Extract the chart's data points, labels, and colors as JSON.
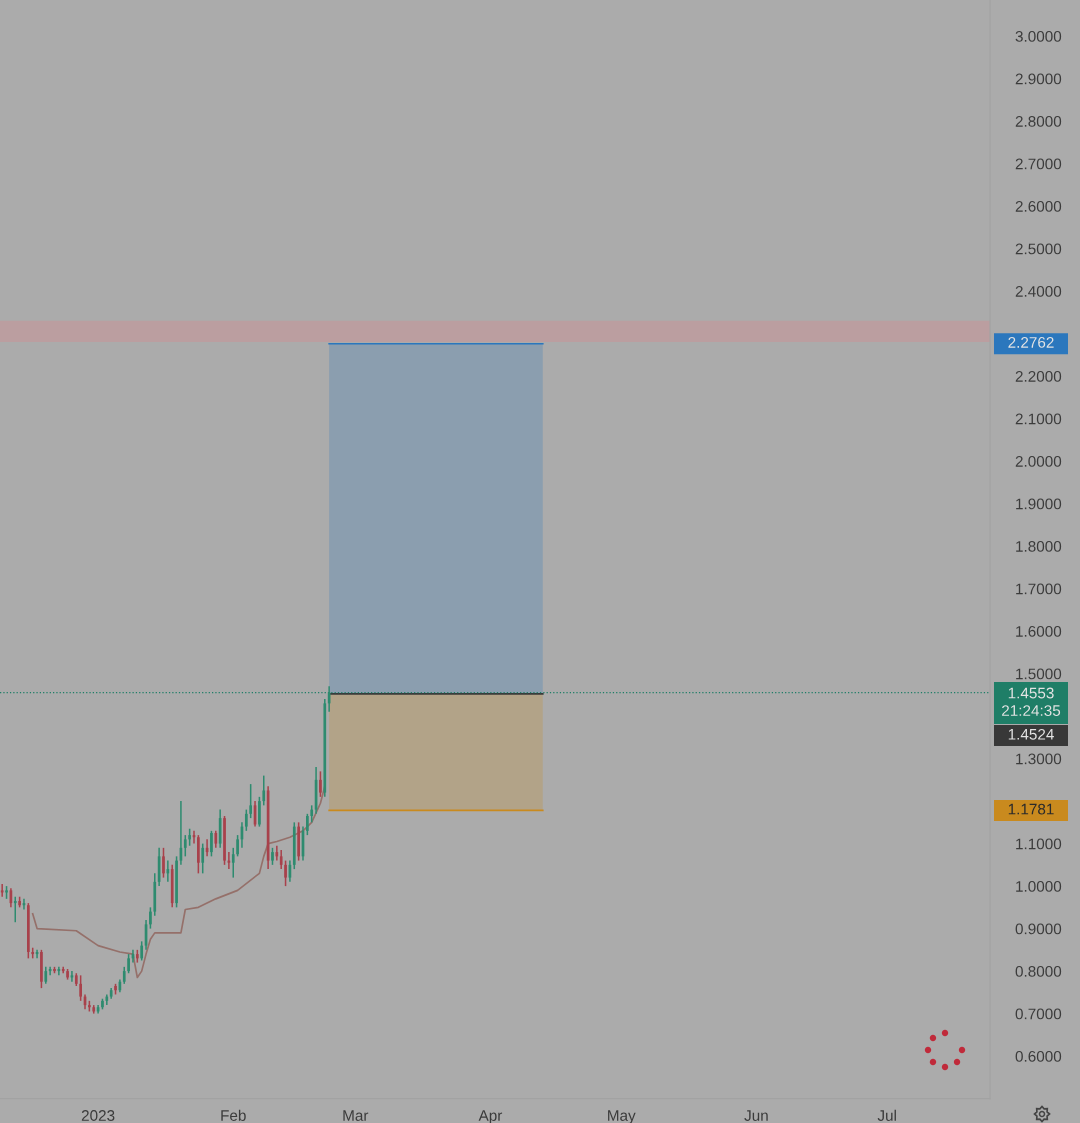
{
  "chart_data": {
    "type": "candlestick",
    "x": [
      "2022-12-10",
      "2022-12-11",
      "2022-12-12",
      "2022-12-13",
      "2022-12-14",
      "2022-12-15",
      "2022-12-16",
      "2022-12-17",
      "2022-12-18",
      "2022-12-19",
      "2022-12-20",
      "2022-12-21",
      "2022-12-22",
      "2022-12-23",
      "2022-12-24",
      "2022-12-25",
      "2022-12-26",
      "2022-12-27",
      "2022-12-28",
      "2022-12-29",
      "2022-12-30",
      "2022-12-31",
      "2023-01-01",
      "2023-01-02",
      "2023-01-03",
      "2023-01-04",
      "2023-01-05",
      "2023-01-06",
      "2023-01-07",
      "2023-01-08",
      "2023-01-09",
      "2023-01-10",
      "2023-01-11",
      "2023-01-12",
      "2023-01-13",
      "2023-01-14",
      "2023-01-15",
      "2023-01-16",
      "2023-01-17",
      "2023-01-18",
      "2023-01-19",
      "2023-01-20",
      "2023-01-21",
      "2023-01-22",
      "2023-01-23",
      "2023-01-24",
      "2023-01-25",
      "2023-01-26",
      "2023-01-27",
      "2023-01-28",
      "2023-01-29",
      "2023-01-30",
      "2023-01-31",
      "2023-02-01",
      "2023-02-02",
      "2023-02-03",
      "2023-02-04",
      "2023-02-05",
      "2023-02-06",
      "2023-02-07",
      "2023-02-08",
      "2023-02-09",
      "2023-02-10",
      "2023-02-11",
      "2023-02-12",
      "2023-02-13",
      "2023-02-14",
      "2023-02-15",
      "2023-02-16",
      "2023-02-17",
      "2023-02-18",
      "2023-02-19",
      "2023-02-20",
      "2023-02-21",
      "2023-02-22",
      "2023-02-23"
    ],
    "ohlc": [
      [
        0.99,
        1.005,
        0.975,
        0.985
      ],
      [
        0.985,
        1.0,
        0.97,
        0.99
      ],
      [
        0.99,
        0.995,
        0.95,
        0.96
      ],
      [
        0.96,
        0.975,
        0.915,
        0.965
      ],
      [
        0.965,
        0.975,
        0.95,
        0.955
      ],
      [
        0.955,
        0.97,
        0.945,
        0.96
      ],
      [
        0.955,
        0.96,
        0.83,
        0.845
      ],
      [
        0.845,
        0.855,
        0.83,
        0.84
      ],
      [
        0.84,
        0.85,
        0.83,
        0.845
      ],
      [
        0.845,
        0.85,
        0.76,
        0.775
      ],
      [
        0.775,
        0.81,
        0.77,
        0.8
      ],
      [
        0.8,
        0.81,
        0.79,
        0.805
      ],
      [
        0.805,
        0.81,
        0.795,
        0.8
      ],
      [
        0.8,
        0.81,
        0.79,
        0.805
      ],
      [
        0.805,
        0.81,
        0.795,
        0.8
      ],
      [
        0.8,
        0.805,
        0.78,
        0.785
      ],
      [
        0.785,
        0.8,
        0.775,
        0.79
      ],
      [
        0.79,
        0.795,
        0.765,
        0.77
      ],
      [
        0.77,
        0.79,
        0.73,
        0.74
      ],
      [
        0.74,
        0.745,
        0.71,
        0.72
      ],
      [
        0.72,
        0.73,
        0.705,
        0.715
      ],
      [
        0.715,
        0.72,
        0.7,
        0.705
      ],
      [
        0.705,
        0.72,
        0.7,
        0.715
      ],
      [
        0.715,
        0.735,
        0.71,
        0.73
      ],
      [
        0.73,
        0.745,
        0.72,
        0.74
      ],
      [
        0.74,
        0.76,
        0.735,
        0.755
      ],
      [
        0.765,
        0.77,
        0.745,
        0.755
      ],
      [
        0.755,
        0.78,
        0.75,
        0.775
      ],
      [
        0.775,
        0.81,
        0.77,
        0.8
      ],
      [
        0.8,
        0.84,
        0.795,
        0.83
      ],
      [
        0.83,
        0.85,
        0.82,
        0.84
      ],
      [
        0.84,
        0.85,
        0.82,
        0.83
      ],
      [
        0.83,
        0.87,
        0.825,
        0.86
      ],
      [
        0.86,
        0.92,
        0.85,
        0.91
      ],
      [
        0.91,
        0.95,
        0.9,
        0.94
      ],
      [
        0.94,
        1.03,
        0.93,
        1.01
      ],
      [
        1.01,
        1.09,
        1.0,
        1.07
      ],
      [
        1.07,
        1.09,
        1.02,
        1.03
      ],
      [
        1.03,
        1.06,
        1.01,
        1.04
      ],
      [
        1.04,
        1.05,
        0.95,
        0.96
      ],
      [
        0.96,
        1.07,
        0.95,
        1.06
      ],
      [
        1.06,
        1.2,
        1.05,
        1.09
      ],
      [
        1.09,
        1.12,
        1.07,
        1.11
      ],
      [
        1.11,
        1.135,
        1.095,
        1.12
      ],
      [
        1.12,
        1.13,
        1.1,
        1.115
      ],
      [
        1.115,
        1.12,
        1.03,
        1.055
      ],
      [
        1.055,
        1.1,
        1.03,
        1.09
      ],
      [
        1.09,
        1.11,
        1.07,
        1.08
      ],
      [
        1.08,
        1.13,
        1.07,
        1.125
      ],
      [
        1.125,
        1.13,
        1.09,
        1.1
      ],
      [
        1.1,
        1.18,
        1.09,
        1.16
      ],
      [
        1.16,
        1.165,
        1.05,
        1.06
      ],
      [
        1.06,
        1.08,
        1.04,
        1.055
      ],
      [
        1.055,
        1.09,
        1.02,
        1.075
      ],
      [
        1.075,
        1.12,
        1.07,
        1.11
      ],
      [
        1.11,
        1.15,
        1.09,
        1.14
      ],
      [
        1.14,
        1.18,
        1.13,
        1.17
      ],
      [
        1.17,
        1.24,
        1.16,
        1.19
      ],
      [
        1.19,
        1.2,
        1.14,
        1.145
      ],
      [
        1.145,
        1.21,
        1.14,
        1.2
      ],
      [
        1.2,
        1.26,
        1.19,
        1.225
      ],
      [
        1.225,
        1.235,
        1.04,
        1.06
      ],
      [
        1.06,
        1.09,
        1.05,
        1.08
      ],
      [
        1.08,
        1.095,
        1.06,
        1.07
      ],
      [
        1.07,
        1.085,
        1.04,
        1.05
      ],
      [
        1.05,
        1.06,
        1.0,
        1.02
      ],
      [
        1.02,
        1.06,
        1.01,
        1.05
      ],
      [
        1.05,
        1.15,
        1.04,
        1.14
      ],
      [
        1.14,
        1.15,
        1.06,
        1.07
      ],
      [
        1.07,
        1.14,
        1.06,
        1.13
      ],
      [
        1.13,
        1.17,
        1.12,
        1.165
      ],
      [
        1.165,
        1.19,
        1.15,
        1.18
      ],
      [
        1.18,
        1.28,
        1.17,
        1.25
      ],
      [
        1.25,
        1.27,
        1.21,
        1.22
      ],
      [
        1.22,
        1.44,
        1.21,
        1.43
      ],
      [
        1.43,
        1.47,
        1.41,
        1.4553
      ]
    ],
    "colors": [
      "#a8414b",
      "#2e8b6f",
      "#a8414b",
      "#2e8b6f",
      "#a8414b",
      "#2e8b6f",
      "#a8414b",
      "#a8414b",
      "#2e8b6f",
      "#a8414b",
      "#2e8b6f",
      "#2e8b6f",
      "#a8414b",
      "#2e8b6f",
      "#a8414b",
      "#a8414b",
      "#2e8b6f",
      "#a8414b",
      "#a8414b",
      "#a8414b",
      "#a8414b",
      "#a8414b",
      "#2e8b6f",
      "#2e8b6f",
      "#2e8b6f",
      "#2e8b6f",
      "#a8414b",
      "#2e8b6f",
      "#2e8b6f",
      "#2e8b6f",
      "#2e8b6f",
      "#a8414b",
      "#2e8b6f",
      "#2e8b6f",
      "#2e8b6f",
      "#2e8b6f",
      "#2e8b6f",
      "#a8414b",
      "#2e8b6f",
      "#a8414b",
      "#2e8b6f",
      "#2e8b6f",
      "#2e8b6f",
      "#2e8b6f",
      "#a8414b",
      "#a8414b",
      "#2e8b6f",
      "#a8414b",
      "#2e8b6f",
      "#a8414b",
      "#2e8b6f",
      "#a8414b",
      "#a8414b",
      "#2e8b6f",
      "#2e8b6f",
      "#2e8b6f",
      "#2e8b6f",
      "#2e8b6f",
      "#a8414b",
      "#2e8b6f",
      "#2e8b6f",
      "#a8414b",
      "#2e8b6f",
      "#a8414b",
      "#a8414b",
      "#a8414b",
      "#2e8b6f",
      "#2e8b6f",
      "#a8414b",
      "#2e8b6f",
      "#2e8b6f",
      "#2e8b6f",
      "#2e8b6f",
      "#a8414b",
      "#2e8b6f",
      "#2e8b6f"
    ],
    "series": [
      {
        "type": "line",
        "color": "#2b77bd",
        "x": [
          "2023-02-23",
          "2023-04-13"
        ],
        "values": [
          2.2762,
          2.2762
        ],
        "lower": [
          1.4524,
          1.4524
        ],
        "upper": [
          2.2762,
          2.2762
        ]
      },
      {
        "type": "line",
        "color": "#c98a1e",
        "x": [
          "2023-02-23",
          "2023-04-13"
        ],
        "values": [
          1.1781,
          1.1781
        ],
        "lower": [
          1.1781,
          1.1781
        ],
        "upper": [
          1.4524,
          1.4524
        ]
      },
      {
        "type": "line",
        "color": "#383838",
        "x": [
          "2023-02-23",
          "2023-04-13"
        ],
        "values": [
          1.4524,
          1.4524
        ]
      },
      {
        "type": "line",
        "color": "#95706a",
        "x": [
          "2022-12-17",
          "2022-12-18",
          "2022-12-27",
          "2023-01-01",
          "2023-01-06",
          "2023-01-09",
          "2023-01-10",
          "2023-01-11",
          "2023-01-12",
          "2023-01-13",
          "2023-01-14",
          "2023-01-20",
          "2023-01-21",
          "2023-01-24",
          "2023-01-28",
          "2023-02-02",
          "2023-02-07",
          "2023-02-08",
          "2023-02-09",
          "2023-02-11",
          "2023-02-14",
          "2023-02-17",
          "2023-02-19",
          "2023-02-21",
          "2023-02-22"
        ],
        "values": [
          0.935,
          0.9,
          0.895,
          0.86,
          0.845,
          0.84,
          0.785,
          0.8,
          0.84,
          0.875,
          0.89,
          0.89,
          0.945,
          0.95,
          0.97,
          0.99,
          1.03,
          1.07,
          1.1,
          1.105,
          1.115,
          1.13,
          1.15,
          1.195,
          1.235
        ]
      }
    ],
    "annotations": [
      "2.2762",
      "1.1781",
      "1.4524"
    ],
    "xlim": [
      "2022-12-09T12:00",
      "2023-07-24T14:00"
    ],
    "xticks": [
      {
        "value": "2023-01-01",
        "label": "2023"
      },
      {
        "value": "2023-02-01",
        "label": "Feb"
      },
      {
        "value": "2023-03-01",
        "label": "Mar"
      },
      {
        "value": "2023-04-01",
        "label": "Apr"
      },
      {
        "value": "2023-05-01",
        "label": "May"
      },
      {
        "value": "2023-06-01",
        "label": "Jun"
      },
      {
        "value": "2023-07-01",
        "label": "Jul"
      }
    ],
    "ylim": [
      0.5,
      3.085
    ],
    "yticks": [
      {
        "value": 3.0,
        "label": "3.0000"
      },
      {
        "value": 2.9,
        "label": "2.9000"
      },
      {
        "value": 2.8,
        "label": "2.8000"
      },
      {
        "value": 2.7,
        "label": "2.7000"
      },
      {
        "value": 2.6,
        "label": "2.6000"
      },
      {
        "value": 2.5,
        "label": "2.5000"
      },
      {
        "value": 2.4,
        "label": "2.4000"
      },
      {
        "value": 2.2,
        "label": "2.2000"
      },
      {
        "value": 2.1,
        "label": "2.1000"
      },
      {
        "value": 2.0,
        "label": "2.0000"
      },
      {
        "value": 1.9,
        "label": "1.9000"
      },
      {
        "value": 1.8,
        "label": "1.8000"
      },
      {
        "value": 1.7,
        "label": "1.7000"
      },
      {
        "value": 1.6,
        "label": "1.6000"
      },
      {
        "value": 1.5,
        "label": "1.5000"
      },
      {
        "value": 1.3,
        "label": "1.3000"
      },
      {
        "value": 1.1,
        "label": "1.1000"
      },
      {
        "value": 1.0,
        "label": "1.0000"
      },
      {
        "value": 0.9,
        "label": "0.9000"
      },
      {
        "value": 0.8,
        "label": "0.8000"
      },
      {
        "value": 0.7,
        "label": "0.7000"
      },
      {
        "value": 0.6,
        "label": "0.6000"
      }
    ],
    "bands": [
      {
        "axis": "y",
        "from": 2.28,
        "to": 2.33,
        "color": "#bb9ea0"
      }
    ],
    "ref_lines": [
      {
        "axis": "y",
        "value": 1.4553,
        "label": "1.4553\n21:24:35",
        "color": "#1f7e67",
        "line_style": "dotted"
      }
    ]
  }
}
